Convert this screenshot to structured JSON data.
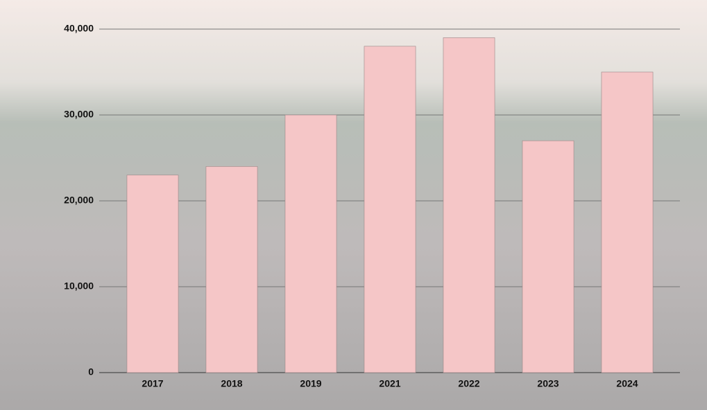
{
  "chart_data": {
    "type": "bar",
    "categories": [
      "2017",
      "2018",
      "2019",
      "2021",
      "2022",
      "2023",
      "2024"
    ],
    "values": [
      23000,
      24000,
      30000,
      38000,
      39000,
      27000,
      35000
    ],
    "color": "#f5c6c7",
    "ylim": [
      0,
      40000
    ],
    "yticks": [
      0,
      {
        "value": 10000,
        "label": "10,000"
      },
      {
        "value": 20000,
        "label": "20,000"
      },
      {
        "value": 30000,
        "label": "30,000"
      },
      {
        "value": 40000,
        "label": "40,000"
      }
    ],
    "grid": true
  }
}
